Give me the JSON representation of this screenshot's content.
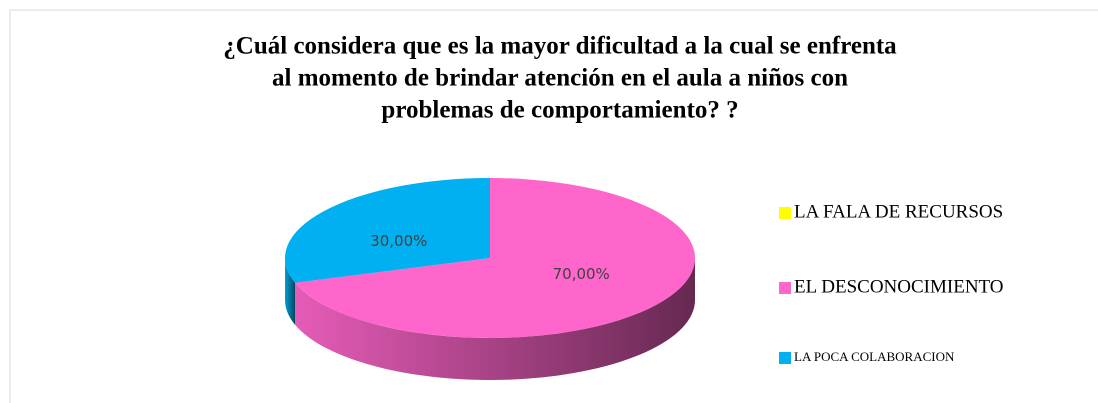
{
  "chart_data": {
    "type": "pie3d",
    "title": [
      "¿Cuál considera que es la mayor dificultad a la cual se enfrenta",
      "al momento de brindar atención en el aula a niños con",
      "problemas de comportamiento? ?"
    ],
    "categories": [
      "LA FALA DE RECURSOS",
      "EL DESCONOCIMIENTO",
      "LA POCA COLABORACION"
    ],
    "values": [
      0,
      70,
      30
    ],
    "value_labels": [
      null,
      "70,00%",
      "30,00%"
    ],
    "colors": [
      "#ffff00",
      "#ff66cc",
      "#00b0f0"
    ],
    "legend": "right"
  }
}
